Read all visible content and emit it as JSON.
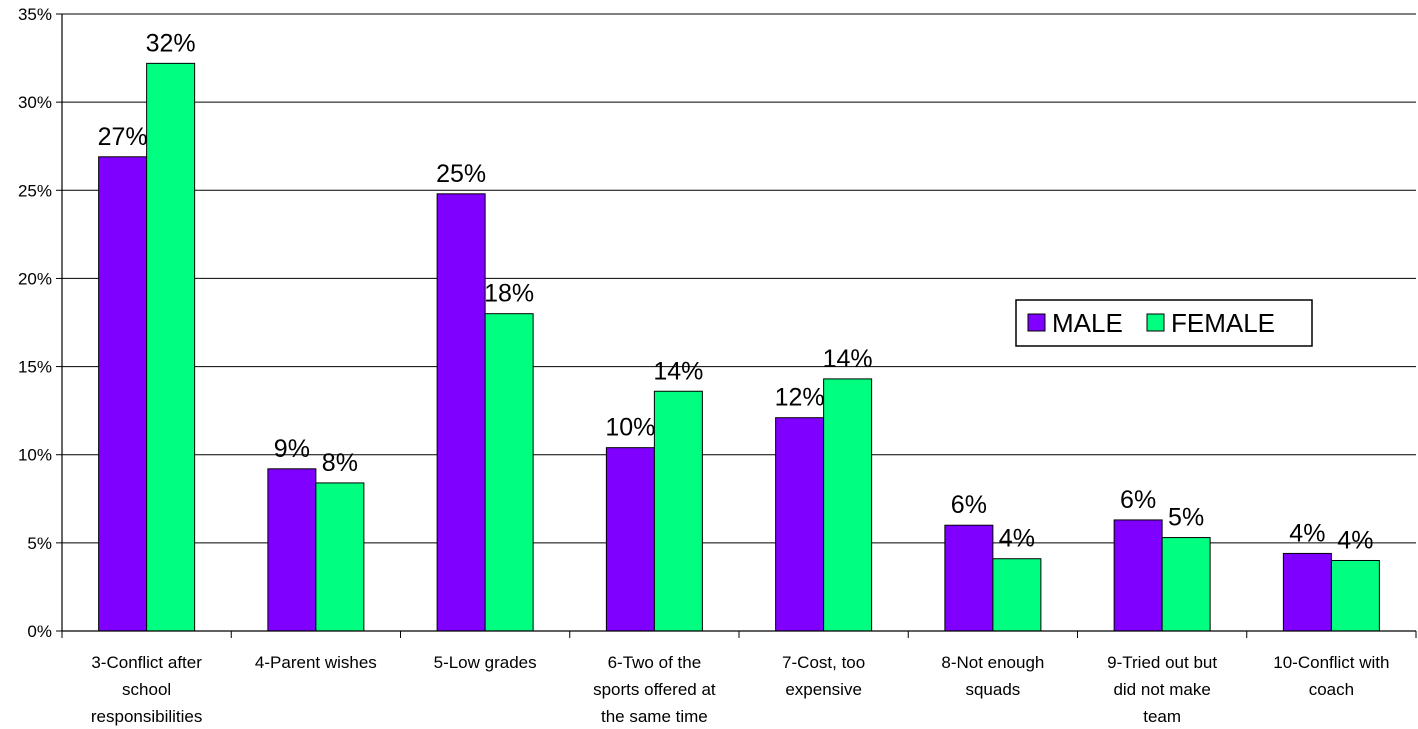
{
  "chart_data": {
    "type": "bar",
    "categories": [
      "3-Conflict after school responsibilities",
      "4-Parent wishes",
      "5-Low grades",
      "6-Two of the sports offered at the same time",
      "7-Cost, too expensive",
      "8-Not enough squads",
      "9-Tried out but did not make team",
      "10-Conflict with coach"
    ],
    "category_lines": [
      [
        "3-Conflict after",
        "school",
        "responsibilities"
      ],
      [
        "4-Parent wishes"
      ],
      [
        "5-Low grades"
      ],
      [
        "6-Two of the",
        "sports offered at",
        "the same time"
      ],
      [
        "7-Cost, too",
        "expensive"
      ],
      [
        "8-Not enough",
        "squads"
      ],
      [
        "9-Tried out but",
        "did not make",
        "team"
      ],
      [
        "10-Conflict with",
        "coach"
      ]
    ],
    "series": [
      {
        "name": "MALE",
        "color": "#7F00FF",
        "values": [
          26.9,
          9.2,
          24.8,
          10.4,
          12.1,
          6.0,
          6.3,
          4.4
        ],
        "labels": [
          "27%",
          "9%",
          "25%",
          "10%",
          "12%",
          "6%",
          "6%",
          "4%"
        ]
      },
      {
        "name": "FEMALE",
        "color": "#00FF80",
        "values": [
          32.2,
          8.4,
          18.0,
          13.6,
          14.3,
          4.1,
          5.3,
          4.0
        ],
        "labels": [
          "32%",
          "8%",
          "18%",
          "14%",
          "14%",
          "4%",
          "5%",
          "4%"
        ]
      }
    ],
    "y_ticks": [
      "0%",
      "5%",
      "10%",
      "15%",
      "20%",
      "25%",
      "30%",
      "35%"
    ],
    "ylim": [
      0,
      35
    ],
    "grid": true,
    "legend_position": "right, upper middle",
    "title": "",
    "xlabel": "",
    "ylabel": ""
  }
}
